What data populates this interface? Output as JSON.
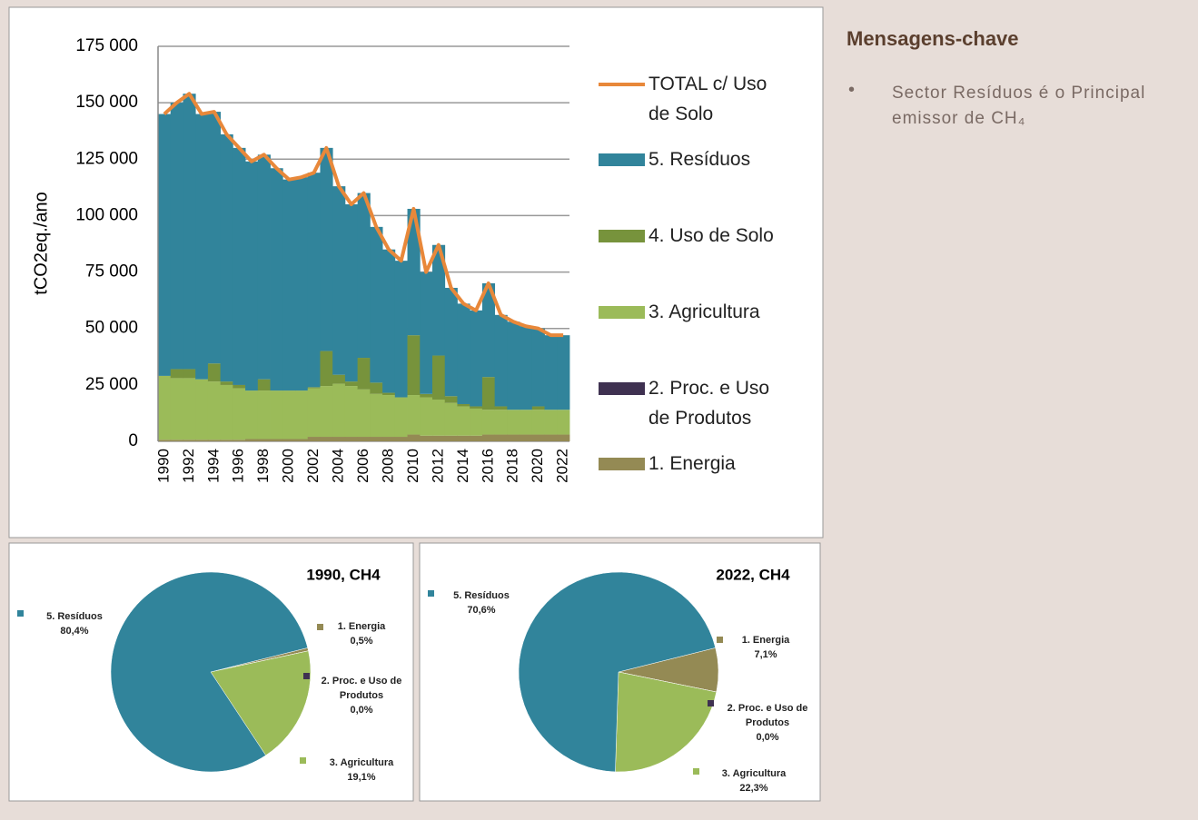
{
  "chart_data": [
    {
      "type": "stacked_bar",
      "ylabel": "tCO2eq./ano",
      "categories": [
        "1990",
        null,
        "1992",
        null,
        "1994",
        null,
        "1996",
        null,
        "1998",
        null,
        "2000",
        null,
        "2002",
        null,
        "2004",
        null,
        "2006",
        null,
        "2008",
        null,
        "2010",
        null,
        "2012",
        null,
        "2014",
        null,
        "2016",
        null,
        "2018",
        null,
        "2020",
        null,
        "2022"
      ],
      "ylim": [
        0,
        175000
      ],
      "yticks": [
        0,
        {
          "value": 25000,
          "label": "25 000"
        },
        {
          "value": 50000,
          "label": "50 000"
        },
        {
          "value": 75000,
          "label": "75 000"
        },
        {
          "value": 100000,
          "label": "100 000"
        },
        {
          "value": 125000,
          "label": "125 000"
        },
        {
          "value": 150000,
          "label": "150 000"
        },
        {
          "value": 175000,
          "label": "175 000"
        }
      ],
      "grid": true,
      "series": [
        {
          "name": "1. Energia",
          "color": "#948a54",
          "values": [
            700,
            700,
            700,
            700,
            700,
            700,
            700,
            1000,
            1000,
            1000,
            1000,
            1000,
            2000,
            2000,
            2000,
            2000,
            2000,
            2000,
            2000,
            2000,
            3000,
            2500,
            2500,
            2500,
            2500,
            2500,
            3000,
            3000,
            3000,
            3000,
            3000,
            3000,
            3000
          ]
        },
        {
          "name": "2. Proc. e Uso de Produtos",
          "color": "#3f3151",
          "values": [
            0,
            0,
            0,
            0,
            0,
            0,
            0,
            0,
            0,
            0,
            0,
            0,
            0,
            0,
            0,
            0,
            0,
            0,
            0,
            0,
            0,
            0,
            0,
            0,
            0,
            0,
            0,
            0,
            0,
            0,
            0,
            0,
            0
          ]
        },
        {
          "name": "3. Agricultura",
          "color": "#9bbb59",
          "values": [
            28300,
            27300,
            27300,
            26800,
            25800,
            24300,
            22800,
            21500,
            21500,
            21500,
            21500,
            21500,
            21500,
            22500,
            23500,
            22500,
            21000,
            19000,
            18500,
            17500,
            17500,
            17000,
            16000,
            14500,
            13000,
            12000,
            11000,
            11000,
            11000,
            11000,
            11000,
            11000,
            11000
          ]
        },
        {
          "name": "4. Uso de Solo",
          "color": "#77933c",
          "values": [
            0,
            4000,
            4000,
            0,
            8000,
            1500,
            1500,
            0,
            5000,
            0,
            0,
            0,
            500,
            15500,
            4000,
            2000,
            14000,
            5000,
            1000,
            0,
            26500,
            1500,
            19500,
            3000,
            1000,
            1000,
            14500,
            1500,
            0,
            0,
            1500,
            0,
            0
          ]
        },
        {
          "name": "5. Resíduos",
          "color": "#31849b",
          "values": [
            116000,
            118000,
            122000,
            117500,
            111500,
            109500,
            105000,
            101500,
            99500,
            98500,
            93500,
            94500,
            95000,
            90000,
            83500,
            78500,
            73000,
            69000,
            63500,
            60500,
            56000,
            54000,
            49000,
            48000,
            44500,
            42500,
            41500,
            40500,
            39000,
            37000,
            34500,
            33000,
            33000
          ]
        },
        {
          "name": "TOTAL c/ Uso de Solo",
          "type": "line",
          "color": "#e8883a",
          "values": [
            145000,
            150000,
            154000,
            145000,
            146000,
            136000,
            130000,
            124000,
            127000,
            121000,
            116000,
            117000,
            119000,
            130000,
            113000,
            105000,
            110000,
            95000,
            85000,
            80000,
            103000,
            75000,
            87000,
            68000,
            61000,
            58000,
            70000,
            56000,
            53000,
            51000,
            50000,
            47000,
            47000
          ]
        }
      ]
    },
    {
      "type": "pie",
      "title": "1990, CH4",
      "categories": [
        "1. Energia",
        "2. Proc. e Uso de Produtos",
        "3. Agricultura",
        "5. Resíduos"
      ],
      "values": [
        0.5,
        0.0,
        19.1,
        80.4
      ],
      "value_labels": [
        "0,5%",
        "0,0%",
        "19,1%",
        "80,4%"
      ],
      "colors": [
        "#948a54",
        "#3f3151",
        "#9bbb59",
        "#31849b"
      ]
    },
    {
      "type": "pie",
      "title": "2022, CH4",
      "categories": [
        "1. Energia",
        "2. Proc. e Uso de Produtos",
        "3. Agricultura",
        "5. Resíduos"
      ],
      "values": [
        7.1,
        0.0,
        22.3,
        70.6
      ],
      "value_labels": [
        "7,1%",
        "0,0%",
        "22,3%",
        "70,6%"
      ],
      "colors": [
        "#948a54",
        "#3f3151",
        "#9bbb59",
        "#31849b"
      ]
    }
  ],
  "key_messages": {
    "title": "Mensagens-chave",
    "items": [
      "Sector Resíduos é o Principal emissor de CH₄"
    ]
  }
}
